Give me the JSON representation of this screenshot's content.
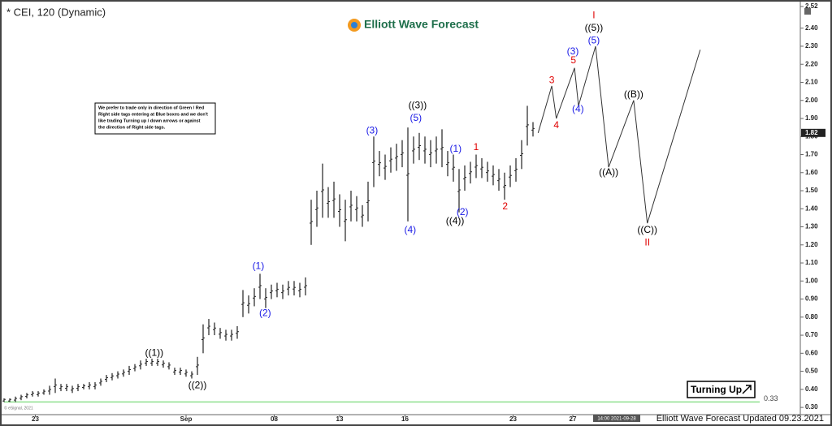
{
  "chart_data": {
    "type": "hilo",
    "title": "* CEI, 120 (Dynamic)",
    "logo": "Elliott Wave Forecast",
    "note": [
      "We prefer to trade only in direction of Green / Red",
      "Right side tags entering at Blue boxes and we don't",
      "like trading Turning up / down arrows or against",
      "the direction of Right side tags."
    ],
    "button": "Turning Up",
    "footer": "Elliott Wave Forecast Updated 09.23.2021",
    "cursor_time": "14:00 2021-09-28",
    "copyright": "© eSignal, 2021",
    "color": "#222222",
    "xlim": [
      0,
      140
    ],
    "ylim": [
      0.26,
      2.52
    ],
    "xticks": [
      {
        "value": 5.5,
        "label": "23"
      },
      {
        "value": 32,
        "label": "Sep"
      },
      {
        "value": 47.5,
        "label": "08"
      },
      {
        "value": 59,
        "label": "13"
      },
      {
        "value": 70.5,
        "label": "16"
      },
      {
        "value": 89.5,
        "label": "23"
      },
      {
        "value": 100,
        "label": "27"
      }
    ],
    "yticks": [
      {
        "value": 0.3,
        "label": "0.30"
      },
      {
        "value": 0.4,
        "label": "0.40"
      },
      {
        "value": 0.5,
        "label": "0.50"
      },
      {
        "value": 0.6,
        "label": "0.60"
      },
      {
        "value": 0.7,
        "label": "0.70"
      },
      {
        "value": 0.8,
        "label": "0.80"
      },
      {
        "value": 0.9,
        "label": "0.90"
      },
      {
        "value": 1.0,
        "label": "1.00"
      },
      {
        "value": 1.1,
        "label": "1.10"
      },
      {
        "value": 1.2,
        "label": "1.20"
      },
      {
        "value": 1.3,
        "label": "1.30"
      },
      {
        "value": 1.4,
        "label": "1.40"
      },
      {
        "value": 1.5,
        "label": "1.50"
      },
      {
        "value": 1.6,
        "label": "1.60"
      },
      {
        "value": 1.7,
        "label": "1.70"
      },
      {
        "value": 1.8,
        "label": "1.80"
      },
      {
        "value": 1.9,
        "label": "1.90"
      },
      {
        "value": 2.0,
        "label": "2.00"
      },
      {
        "value": 2.1,
        "label": "2.10"
      },
      {
        "value": 2.2,
        "label": "2.20"
      },
      {
        "value": 2.3,
        "label": "2.30"
      },
      {
        "value": 2.4,
        "label": "2.40"
      },
      {
        "value": 2.52,
        "label": "2.52"
      }
    ],
    "x": [
      0,
      1,
      2,
      3,
      4,
      5,
      6,
      7,
      8,
      9,
      10,
      11,
      12,
      13,
      14,
      15,
      16,
      17,
      18,
      19,
      20,
      21,
      22,
      23,
      24,
      25,
      26,
      27,
      28,
      29,
      30,
      31,
      32,
      33,
      34,
      35,
      36,
      37,
      38,
      39,
      40,
      41,
      42,
      43,
      44,
      45,
      46,
      47,
      48,
      49,
      50,
      51,
      52,
      53,
      54,
      55,
      56,
      57,
      58,
      59,
      60,
      61,
      62,
      63,
      64,
      65,
      66,
      67,
      68,
      69,
      70,
      71,
      72,
      73,
      74,
      75,
      76,
      77,
      78,
      79,
      80,
      81,
      82,
      83,
      84,
      85,
      86,
      87,
      88,
      89,
      90,
      91,
      92,
      93
    ],
    "low": [
      0.33,
      0.33,
      0.33,
      0.34,
      0.35,
      0.36,
      0.36,
      0.37,
      0.37,
      0.38,
      0.39,
      0.39,
      0.38,
      0.39,
      0.4,
      0.4,
      0.4,
      0.42,
      0.44,
      0.45,
      0.46,
      0.47,
      0.48,
      0.5,
      0.51,
      0.53,
      0.53,
      0.53,
      0.52,
      0.51,
      0.48,
      0.48,
      0.47,
      0.46,
      0.48,
      0.6,
      0.7,
      0.7,
      0.68,
      0.67,
      0.67,
      0.68,
      0.8,
      0.82,
      0.86,
      0.9,
      0.85,
      0.9,
      0.91,
      0.9,
      0.92,
      0.92,
      0.91,
      0.92,
      1.2,
      1.3,
      1.35,
      1.35,
      1.35,
      1.3,
      1.22,
      1.33,
      1.33,
      1.3,
      1.33,
      1.52,
      1.58,
      1.56,
      1.6,
      1.61,
      1.63,
      1.33,
      1.65,
      1.67,
      1.65,
      1.63,
      1.65,
      1.63,
      1.58,
      1.55,
      1.38,
      1.5,
      1.54,
      1.57,
      1.57,
      1.55,
      1.53,
      1.5,
      1.45,
      1.52,
      1.55,
      1.62,
      1.75,
      1.8
    ],
    "high": [
      0.35,
      0.35,
      0.36,
      0.37,
      0.38,
      0.39,
      0.39,
      0.4,
      0.42,
      0.46,
      0.43,
      0.43,
      0.42,
      0.43,
      0.43,
      0.44,
      0.44,
      0.46,
      0.48,
      0.49,
      0.5,
      0.51,
      0.53,
      0.54,
      0.56,
      0.57,
      0.57,
      0.57,
      0.56,
      0.55,
      0.52,
      0.52,
      0.51,
      0.5,
      0.58,
      0.76,
      0.79,
      0.77,
      0.74,
      0.73,
      0.73,
      0.75,
      0.95,
      0.92,
      0.96,
      1.04,
      0.96,
      0.98,
      0.99,
      0.98,
      1.0,
      1.0,
      0.99,
      1.02,
      1.45,
      1.5,
      1.65,
      1.52,
      1.55,
      1.48,
      1.45,
      1.5,
      1.47,
      1.42,
      1.55,
      1.8,
      1.72,
      1.7,
      1.74,
      1.76,
      1.78,
      1.85,
      1.8,
      1.82,
      1.8,
      1.78,
      1.8,
      1.84,
      1.72,
      1.7,
      1.62,
      1.64,
      1.66,
      1.7,
      1.68,
      1.66,
      1.64,
      1.62,
      1.6,
      1.64,
      1.68,
      1.78,
      1.97,
      1.88
    ],
    "projection": {
      "color": "#333333",
      "x": [
        93.9,
        96.3,
        97.1,
        100.3,
        101,
        104,
        106.3,
        110.7,
        113.1,
        122.4
      ],
      "y": [
        1.82,
        2.08,
        1.9,
        2.18,
        1.97,
        2.3,
        1.63,
        2.0,
        1.32,
        2.28
      ]
    },
    "hline": {
      "value": 0.33,
      "label": "0.33",
      "color": "#8fe08f"
    },
    "last_price": {
      "value": 1.82,
      "label": "1.82"
    },
    "annotations": [
      {
        "text": "((1))",
        "x": 26.4,
        "y": 0.6,
        "color": "#000000"
      },
      {
        "text": "((2))",
        "x": 34,
        "y": 0.42,
        "color": "#000000"
      },
      {
        "text": "(1)",
        "x": 44.7,
        "y": 1.08,
        "color": "#1a1ae6"
      },
      {
        "text": "(2)",
        "x": 45.9,
        "y": 0.82,
        "color": "#1a1ae6"
      },
      {
        "text": "(3)",
        "x": 64.7,
        "y": 1.83,
        "color": "#1a1ae6"
      },
      {
        "text": "((3))",
        "x": 72.7,
        "y": 1.97,
        "color": "#000000"
      },
      {
        "text": "(5)",
        "x": 72.4,
        "y": 1.9,
        "color": "#1a1ae6"
      },
      {
        "text": "(4)",
        "x": 71.4,
        "y": 1.28,
        "color": "#1a1ae6"
      },
      {
        "text": "(1)",
        "x": 79.4,
        "y": 1.73,
        "color": "#1a1ae6"
      },
      {
        "text": "1",
        "x": 83,
        "y": 1.74,
        "color": "#e00000"
      },
      {
        "text": "((4))",
        "x": 79.3,
        "y": 1.33,
        "color": "#000000"
      },
      {
        "text": "(2)",
        "x": 80.6,
        "y": 1.38,
        "color": "#1a1ae6"
      },
      {
        "text": "2",
        "x": 88.1,
        "y": 1.41,
        "color": "#e00000"
      },
      {
        "text": "3",
        "x": 96.3,
        "y": 2.11,
        "color": "#e00000"
      },
      {
        "text": "4",
        "x": 97.1,
        "y": 1.86,
        "color": "#e00000"
      },
      {
        "text": "(3)",
        "x": 100,
        "y": 2.27,
        "color": "#1a1ae6"
      },
      {
        "text": "5",
        "x": 100.1,
        "y": 2.22,
        "color": "#e00000"
      },
      {
        "text": "(4)",
        "x": 100.9,
        "y": 1.95,
        "color": "#1a1ae6"
      },
      {
        "text": "(5)",
        "x": 103.7,
        "y": 2.33,
        "color": "#1a1ae6"
      },
      {
        "text": "((5))",
        "x": 103.7,
        "y": 2.4,
        "color": "#000000"
      },
      {
        "text": "I",
        "x": 103.7,
        "y": 2.47,
        "color": "#e00000"
      },
      {
        "text": "((B))",
        "x": 110.7,
        "y": 2.03,
        "color": "#000000"
      },
      {
        "text": "((A))",
        "x": 106.3,
        "y": 1.6,
        "color": "#000000"
      },
      {
        "text": "((C))",
        "x": 113.1,
        "y": 1.28,
        "color": "#000000"
      },
      {
        "text": "II",
        "x": 113.1,
        "y": 1.21,
        "color": "#e00000"
      }
    ]
  }
}
